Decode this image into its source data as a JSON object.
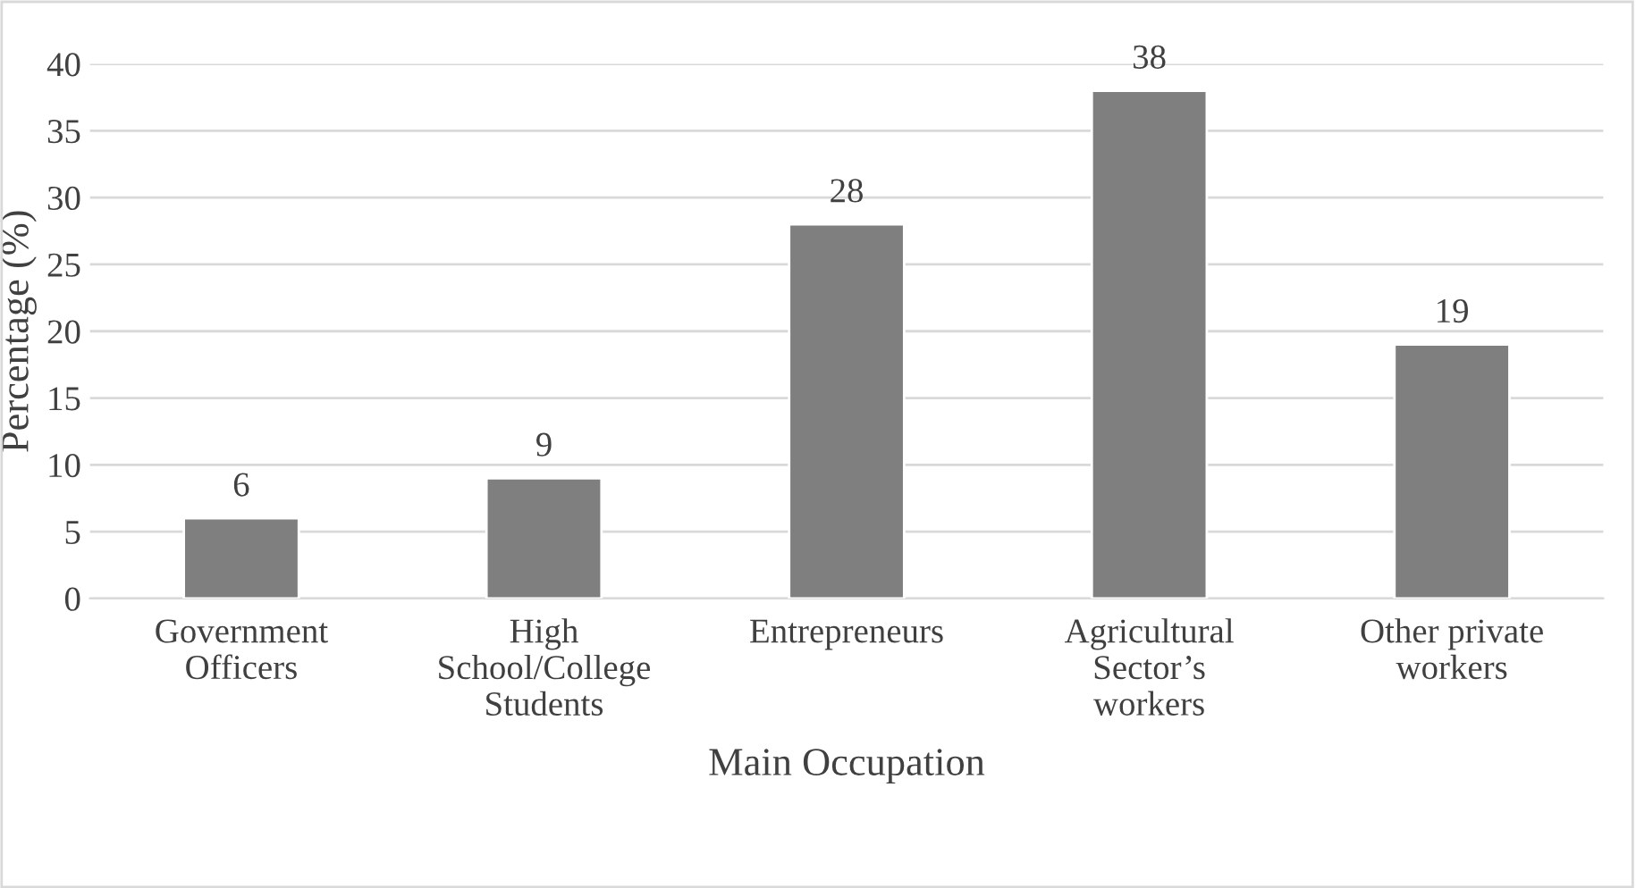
{
  "chart_data": {
    "type": "bar",
    "categories": [
      "Government\nOfficers",
      "High\nSchool/College\nStudents",
      "Entrepreneurs",
      "Agricultural\nSector’s\nworkers",
      "Other private\nworkers"
    ],
    "values": [
      6,
      9,
      28,
      38,
      19
    ],
    "color": "#7f7f7f",
    "xlabel": "Main Occupation",
    "ylabel": "Percentage (%)",
    "ylim": [
      0,
      40
    ],
    "yticks": [
      0,
      5,
      10,
      15,
      20,
      25,
      30,
      35,
      40
    ],
    "grid": "y",
    "data_labels": true
  }
}
